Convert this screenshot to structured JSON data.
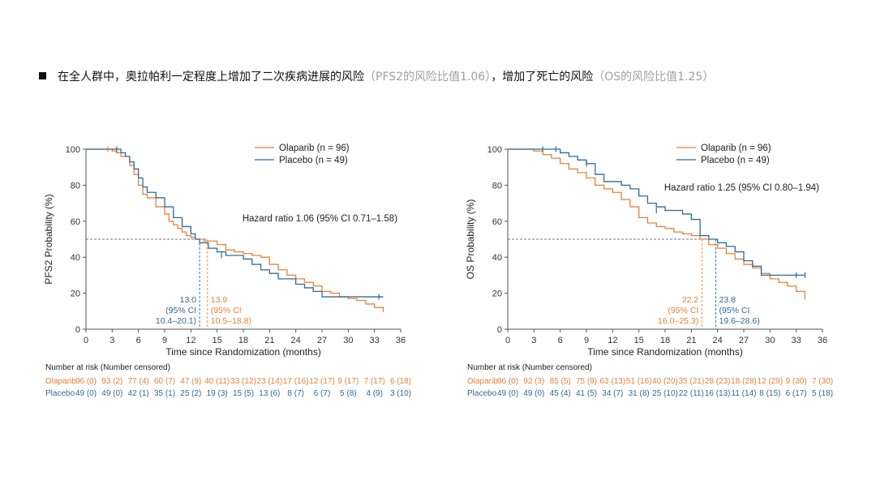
{
  "headline": {
    "part1": "在全人群中，奥拉帕利一定程度上增加了二次疾病进展的风险",
    "part2": "（PFS2的风险比值1.06）",
    "part3": "，增加了死亡的风险",
    "part4": "（OS的风险比值1.25）"
  },
  "colors": {
    "olaparib": "#e6823a",
    "placebo": "#2f6a9a",
    "axis": "#555555",
    "ref": "#777777"
  },
  "risk_title": "Number at risk (Number censored)",
  "chart_data": [
    {
      "type": "line",
      "subtype": "kaplan-meier",
      "ylabel": "PFS2 Probability (%)",
      "xlabel": "Time since Randomization (months)",
      "xlim": [
        0,
        36
      ],
      "ylim": [
        0,
        100
      ],
      "xticks": [
        "0",
        "3",
        "6",
        "9",
        "12",
        "15",
        "18",
        "21",
        "24",
        "27",
        "30",
        "33",
        "36"
      ],
      "yticks": [
        "0",
        "20",
        "40",
        "60",
        "80",
        "100"
      ],
      "legend": [
        {
          "key": "olaparib",
          "label": "Olaparib (n = 96)"
        },
        {
          "key": "placebo",
          "label": "Placebo (n = 49)"
        }
      ],
      "hazard_ratio": "Hazard ratio 1.06 (95% CI 0.71–1.58)",
      "median_line": 50,
      "medians": [
        {
          "key": "placebo",
          "x": 13.0,
          "lines": [
            "13.0",
            "(95% CI",
            "10.4–20.1)"
          ]
        },
        {
          "key": "olaparib",
          "x": 13.9,
          "lines": [
            "13.9",
            "(95% CI",
            "10.5–18.8)"
          ]
        }
      ],
      "series": [
        {
          "name": "Olaparib",
          "key": "olaparib",
          "x": [
            0,
            2,
            3,
            3.5,
            4,
            5,
            5.5,
            6,
            6.5,
            7,
            8,
            9,
            9.5,
            10,
            10.5,
            11,
            11.5,
            12,
            12.5,
            13,
            13.5,
            14,
            15,
            16,
            17,
            18,
            19,
            20,
            21,
            22,
            23,
            24,
            25,
            26,
            27,
            28,
            29,
            30,
            31,
            32,
            33,
            34
          ],
          "y": [
            100,
            100,
            99,
            98,
            96,
            91,
            86,
            80,
            75,
            73,
            68,
            64,
            60,
            58,
            56,
            54,
            52,
            51,
            50,
            50,
            49,
            49,
            47,
            44,
            43,
            42,
            41,
            40,
            36,
            33,
            30,
            28,
            26,
            24,
            21,
            20,
            18,
            17,
            16,
            14,
            12,
            11
          ]
        },
        {
          "name": "Placebo",
          "key": "placebo",
          "x": [
            0,
            3,
            4,
            4.5,
            5,
            5.5,
            6,
            6.5,
            7,
            8,
            9,
            10,
            11,
            12,
            12.5,
            13,
            14,
            15,
            16,
            17,
            18,
            19,
            20,
            21,
            22,
            24,
            25,
            26,
            27,
            33,
            34
          ],
          "y": [
            100,
            100,
            98,
            96,
            93,
            89,
            84,
            79,
            76,
            73,
            68,
            62,
            57,
            53,
            50,
            48,
            45,
            43,
            41,
            41,
            39,
            36,
            33,
            31,
            28,
            25,
            23,
            21,
            18,
            18,
            18
          ]
        }
      ],
      "censors": [
        {
          "key": "placebo",
          "x": [
            3.5,
            15.5,
            33.5
          ],
          "y": [
            100,
            41,
            18
          ]
        },
        {
          "key": "olaparib",
          "x": [
            2.5,
            34
          ],
          "y": [
            100,
            11
          ]
        }
      ],
      "risk": [
        {
          "key": "olaparib",
          "label": "Olaparib",
          "values": [
            "96 (0)",
            "93 (2)",
            "77 (4)",
            "60 (7)",
            "47 (9)",
            "40 (11)",
            "33 (12)",
            "23 (14)",
            "17 (16)",
            "12 (17)",
            "9 (17)",
            "7 (17)",
            "6 (18)"
          ]
        },
        {
          "key": "placebo",
          "label": "Placebo",
          "values": [
            "49 (0)",
            "49 (0)",
            "42 (1)",
            "35 (1)",
            "25 (2)",
            "19 (3)",
            "15 (5)",
            "13 (6)",
            "8 (7)",
            "6 (7)",
            "5 (8)",
            "4 (9)",
            "3 (10)"
          ]
        }
      ]
    },
    {
      "type": "line",
      "subtype": "kaplan-meier",
      "ylabel": "OS Probability (%)",
      "xlabel": "Time since Randomization (months)",
      "xlim": [
        0,
        36
      ],
      "ylim": [
        0,
        100
      ],
      "xticks": [
        "0",
        "3",
        "6",
        "9",
        "12",
        "15",
        "18",
        "21",
        "24",
        "27",
        "30",
        "33",
        "36"
      ],
      "yticks": [
        "0",
        "20",
        "40",
        "60",
        "80",
        "100"
      ],
      "legend": [
        {
          "key": "olaparib",
          "label": "Olaparib (n = 96)"
        },
        {
          "key": "placebo",
          "label": "Placebo (n = 49)"
        }
      ],
      "hazard_ratio": "Hazard ratio 1.25 (95% CI 0.80–1.94)",
      "median_line": 50,
      "medians": [
        {
          "key": "olaparib",
          "x": 22.2,
          "lines": [
            "22.2",
            "(95% CI",
            "16.0–25.3)"
          ]
        },
        {
          "key": "placebo",
          "x": 23.8,
          "lines": [
            "23.8",
            "(95% CI",
            "19.6–28.6)"
          ]
        }
      ],
      "series": [
        {
          "name": "Olaparib",
          "key": "olaparib",
          "x": [
            0,
            2,
            3,
            4,
            5,
            6,
            7,
            8,
            9,
            10,
            11,
            12,
            13,
            14,
            15,
            16,
            17,
            18,
            19,
            20,
            21,
            22,
            23,
            24,
            25,
            26,
            27,
            28,
            29,
            30,
            31,
            32,
            33,
            34
          ],
          "y": [
            100,
            100,
            99,
            97,
            95,
            92,
            89,
            87,
            84,
            80,
            78,
            76,
            72,
            68,
            62,
            59,
            57,
            56,
            54,
            53,
            52,
            50,
            47,
            45,
            42,
            39,
            36,
            34,
            31,
            28,
            26,
            24,
            21,
            18
          ]
        },
        {
          "name": "Placebo",
          "key": "placebo",
          "x": [
            0,
            3,
            5,
            6,
            7,
            8,
            9,
            10,
            11,
            12,
            13,
            14,
            15,
            16,
            17,
            18,
            19,
            20,
            21,
            22,
            23,
            24,
            25,
            26,
            27,
            28,
            29,
            33,
            34
          ],
          "y": [
            100,
            100,
            100,
            98,
            96,
            94,
            92,
            86,
            82,
            82,
            80,
            78,
            74,
            70,
            68,
            66,
            66,
            64,
            61,
            52,
            50,
            48,
            46,
            43,
            38,
            35,
            30,
            30,
            30
          ]
        }
      ],
      "censors": [
        {
          "key": "placebo",
          "x": [
            4,
            5.5,
            9,
            17,
            33,
            34
          ],
          "y": [
            100,
            100,
            92,
            66,
            30,
            30
          ]
        },
        {
          "key": "olaparib",
          "x": [
            34
          ],
          "y": [
            18
          ]
        }
      ],
      "risk": [
        {
          "key": "olaparib",
          "label": "Olaparib",
          "values": [
            "96 (0)",
            "92 (3)",
            "85 (5)",
            "75 (9)",
            "63 (13)",
            "51 (16)",
            "40 (20)",
            "35 (21)",
            "28 (23)",
            "18 (28)",
            "12 (29)",
            "9 (30)",
            "7 (30)"
          ]
        },
        {
          "key": "placebo",
          "label": "Placebo",
          "values": [
            "49 (0)",
            "49 (0)",
            "45 (4)",
            "41 (5)",
            "34 (7)",
            "31 (8)",
            "25 (10)",
            "22 (11)",
            "16 (13)",
            "11 (14)",
            "8 (15)",
            "6 (17)",
            "5 (18)"
          ]
        }
      ]
    }
  ]
}
